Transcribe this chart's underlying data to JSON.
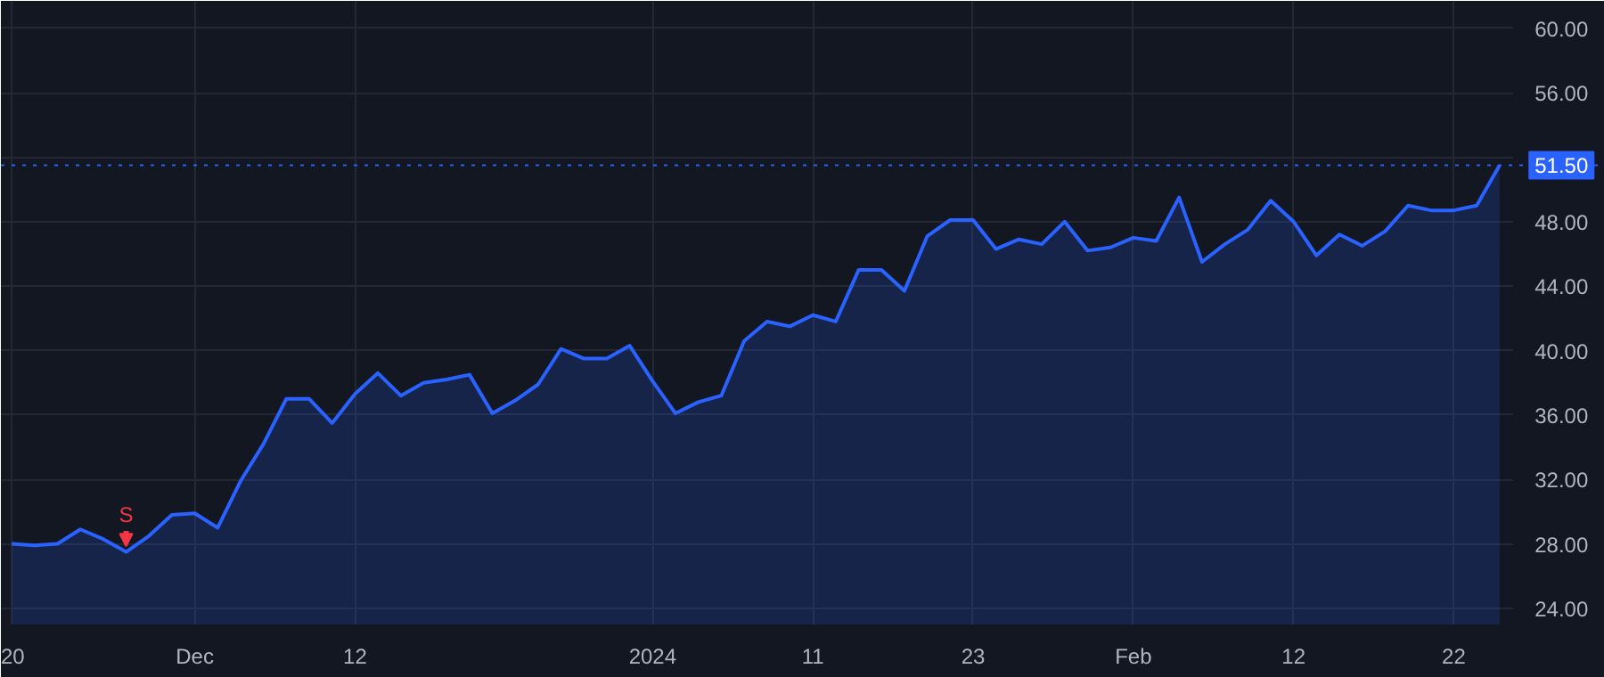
{
  "chart_data": {
    "type": "area",
    "color": "#2962ff",
    "categories": [
      "20",
      null,
      null,
      null,
      null,
      null,
      null,
      null,
      "Dec",
      null,
      null,
      null,
      null,
      null,
      null,
      "12",
      null,
      null,
      null,
      null,
      null,
      null,
      null,
      null,
      null,
      null,
      null,
      null,
      "2024",
      null,
      null,
      null,
      null,
      null,
      null,
      "11",
      null,
      null,
      null,
      null,
      null,
      null,
      "23",
      null,
      null,
      null,
      null,
      null,
      null,
      "Feb",
      null,
      null,
      null,
      null,
      null,
      null,
      "12",
      null,
      null,
      null,
      null,
      null,
      null,
      "22",
      null,
      null
    ],
    "values": [
      28.0,
      27.9,
      28.0,
      28.9,
      28.3,
      27.5,
      28.5,
      29.8,
      29.9,
      29.0,
      31.9,
      34.2,
      37.0,
      37.0,
      35.5,
      37.3,
      38.6,
      37.2,
      38.0,
      38.2,
      38.5,
      36.1,
      36.9,
      37.9,
      40.1,
      39.5,
      39.5,
      40.3,
      38.1,
      36.1,
      36.8,
      37.2,
      40.6,
      41.8,
      41.5,
      42.2,
      41.8,
      45.0,
      45.0,
      43.7,
      47.1,
      48.1,
      48.1,
      46.3,
      46.9,
      46.6,
      48.0,
      46.2,
      46.4,
      47.0,
      46.8,
      49.5,
      45.5,
      46.6,
      47.5,
      49.3,
      48.0,
      45.9,
      47.2,
      46.5,
      47.4,
      49.0,
      48.7,
      48.7,
      49.0,
      51.5
    ],
    "ylim": [
      23.0,
      61.7
    ],
    "yticks": [
      {
        "value": 24,
        "label": "24.00"
      },
      {
        "value": 28,
        "label": "28.00"
      },
      {
        "value": 32,
        "label": "32.00"
      },
      {
        "value": 36,
        "label": "36.00"
      },
      {
        "value": 40,
        "label": "40.00"
      },
      {
        "value": 44,
        "label": "44.00"
      },
      {
        "value": 48,
        "label": "48.00"
      },
      {
        "value": 52,
        "label": null
      },
      {
        "value": 56,
        "label": "56.00"
      },
      {
        "value": 60,
        "label": "60.00"
      }
    ],
    "ref_lines": [
      {
        "axis": "y",
        "value": 51.5,
        "label": "51.50",
        "color": "#2962ff",
        "line_style": "dotted"
      }
    ],
    "annotations": [
      {
        "text": "S",
        "y": 27.5
      }
    ],
    "grid": true,
    "marker": "none",
    "line_style": "solid"
  }
}
